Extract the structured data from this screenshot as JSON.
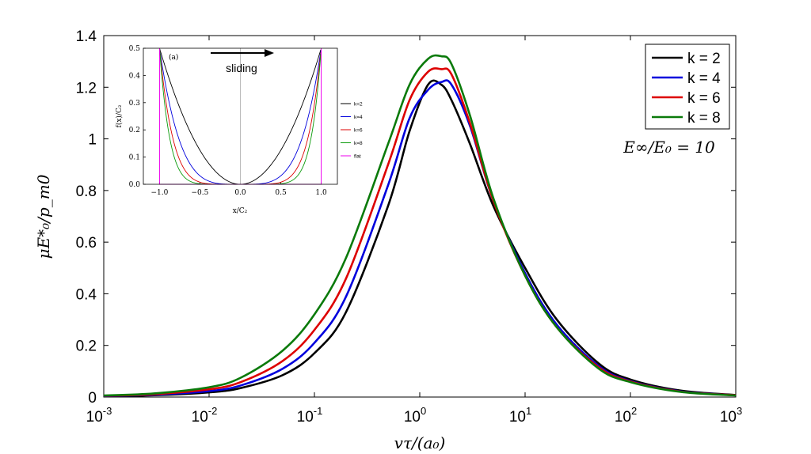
{
  "chart_data": [
    {
      "type": "line",
      "role": "main",
      "title": "",
      "xlabel": "vτ/(a₀)",
      "ylabel": "μE*₀/p_m0",
      "xscale": "log",
      "xlim": [
        0.001,
        1000
      ],
      "ylim": [
        0,
        1.4
      ],
      "grid": false,
      "legend_position": "top-right",
      "annotation": "E∞/E₀ = 10",
      "x_ticks": [
        {
          "value": 0.001,
          "base": "10",
          "exp": "-3"
        },
        {
          "value": 0.01,
          "base": "10",
          "exp": "-2"
        },
        {
          "value": 0.1,
          "base": "10",
          "exp": "-1"
        },
        {
          "value": 1,
          "base": "10",
          "exp": "0"
        },
        {
          "value": 10,
          "base": "10",
          "exp": "1"
        },
        {
          "value": 100,
          "base": "10",
          "exp": "2"
        },
        {
          "value": 1000,
          "base": "10",
          "exp": "3"
        }
      ],
      "y_ticks": [
        {
          "value": 0,
          "label": "0"
        },
        {
          "value": 0.2,
          "label": "0.2"
        },
        {
          "value": 0.4,
          "label": "0.4"
        },
        {
          "value": 0.6,
          "label": "0.6"
        },
        {
          "value": 0.8,
          "label": "0.8"
        },
        {
          "value": 1,
          "label": "1"
        },
        {
          "value": 1.2,
          "label": "1.2"
        },
        {
          "value": 1.4,
          "label": "1.4"
        }
      ],
      "series": [
        {
          "name": "k = 2",
          "color": "#000000",
          "x": [
            0.001,
            0.003,
            0.01,
            0.02,
            0.05,
            0.1,
            0.2,
            0.5,
            0.8,
            1.2,
            1.6,
            2.0,
            3.0,
            5.0,
            10,
            20,
            50,
            100,
            300,
            1000
          ],
          "y": [
            0.003,
            0.007,
            0.018,
            0.035,
            0.085,
            0.17,
            0.33,
            0.74,
            1.03,
            1.21,
            1.21,
            1.15,
            0.98,
            0.74,
            0.5,
            0.3,
            0.13,
            0.068,
            0.025,
            0.008
          ]
        },
        {
          "name": "k = 4",
          "color": "#0000dd",
          "x": [
            0.001,
            0.003,
            0.01,
            0.02,
            0.05,
            0.1,
            0.2,
            0.5,
            0.8,
            1.2,
            1.6,
            2.0,
            3.0,
            5.0,
            10,
            20,
            50,
            100,
            300,
            1000
          ],
          "y": [
            0.004,
            0.009,
            0.023,
            0.045,
            0.11,
            0.21,
            0.39,
            0.82,
            1.08,
            1.19,
            1.22,
            1.21,
            1.05,
            0.76,
            0.48,
            0.28,
            0.12,
            0.062,
            0.022,
            0.007
          ]
        },
        {
          "name": "k = 6",
          "color": "#dd0000",
          "x": [
            0.001,
            0.003,
            0.01,
            0.02,
            0.05,
            0.1,
            0.2,
            0.5,
            0.8,
            1.2,
            1.6,
            2.0,
            3.0,
            5.0,
            10,
            20,
            50,
            100,
            300,
            1000
          ],
          "y": [
            0.005,
            0.011,
            0.03,
            0.058,
            0.14,
            0.26,
            0.46,
            0.9,
            1.15,
            1.26,
            1.27,
            1.25,
            1.06,
            0.76,
            0.47,
            0.27,
            0.115,
            0.06,
            0.021,
            0.007
          ]
        },
        {
          "name": "k = 8",
          "color": "#0a7a0a",
          "x": [
            0.001,
            0.003,
            0.01,
            0.02,
            0.05,
            0.1,
            0.2,
            0.5,
            0.8,
            1.2,
            1.6,
            2.0,
            3.0,
            5.0,
            10,
            20,
            50,
            100,
            300,
            1000
          ],
          "y": [
            0.006,
            0.014,
            0.038,
            0.075,
            0.18,
            0.32,
            0.54,
            0.98,
            1.21,
            1.31,
            1.32,
            1.29,
            1.09,
            0.77,
            0.47,
            0.27,
            0.11,
            0.058,
            0.02,
            0.006
          ]
        }
      ]
    },
    {
      "type": "line",
      "role": "inset",
      "panel_label": "(a)",
      "xlabel": "x/C₂",
      "ylabel": "f(x)/C₂",
      "xlim": [
        -1.2,
        1.2
      ],
      "ylim": [
        0,
        0.5
      ],
      "annotation": "sliding",
      "legend_position": "right",
      "x_ticks": [
        "−1.0",
        "−0.5",
        "0.0",
        "0.5",
        "1.0"
      ],
      "x_tick_values": [
        -1.0,
        -0.5,
        0.0,
        0.5,
        1.0
      ],
      "y_ticks": [
        "0.0",
        "0.1",
        "0.2",
        "0.3",
        "0.4",
        "0.5"
      ],
      "y_tick_values": [
        0,
        0.1,
        0.2,
        0.3,
        0.4,
        0.5
      ],
      "series": [
        {
          "name": "k=2",
          "color": "#000000",
          "k": 2
        },
        {
          "name": "k=4",
          "color": "#0000dd",
          "k": 4
        },
        {
          "name": "k=6",
          "color": "#dd0000",
          "k": 6
        },
        {
          "name": "k=8",
          "color": "#0a9a0a",
          "k": 8
        },
        {
          "name": "flat",
          "color": "#ee00ee",
          "edges": [
            -1.0,
            1.0
          ]
        }
      ]
    }
  ]
}
